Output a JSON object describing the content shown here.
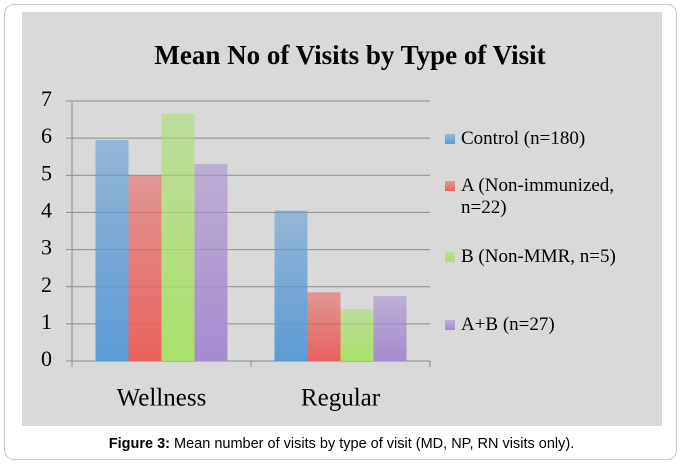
{
  "chart_data": {
    "type": "bar",
    "title": "Mean No of Visits by Type of Visit",
    "categories": [
      "Wellness",
      "Regular"
    ],
    "series": [
      {
        "name": "Control (n=180)",
        "color": "#5b9bd5",
        "values": [
          5.95,
          4.05
        ]
      },
      {
        "name": "A (Non-immunized, n=22)",
        "color": "#e8615c",
        "values": [
          5.0,
          1.85
        ]
      },
      {
        "name": "B (Non-MMR, n=5)",
        "color": "#a9e06a",
        "values": [
          6.65,
          1.4
        ]
      },
      {
        "name": "A+B (n=27)",
        "color": "#a58bd0",
        "values": [
          5.3,
          1.75
        ]
      }
    ],
    "ylim": [
      0,
      7
    ],
    "yticks": [
      0,
      1,
      2,
      3,
      4,
      5,
      6,
      7
    ],
    "grid": true,
    "legend": "right"
  },
  "caption": {
    "label": "Figure 3:",
    "text": "Mean number of visits by type of visit (MD, NP, RN visits only)."
  }
}
